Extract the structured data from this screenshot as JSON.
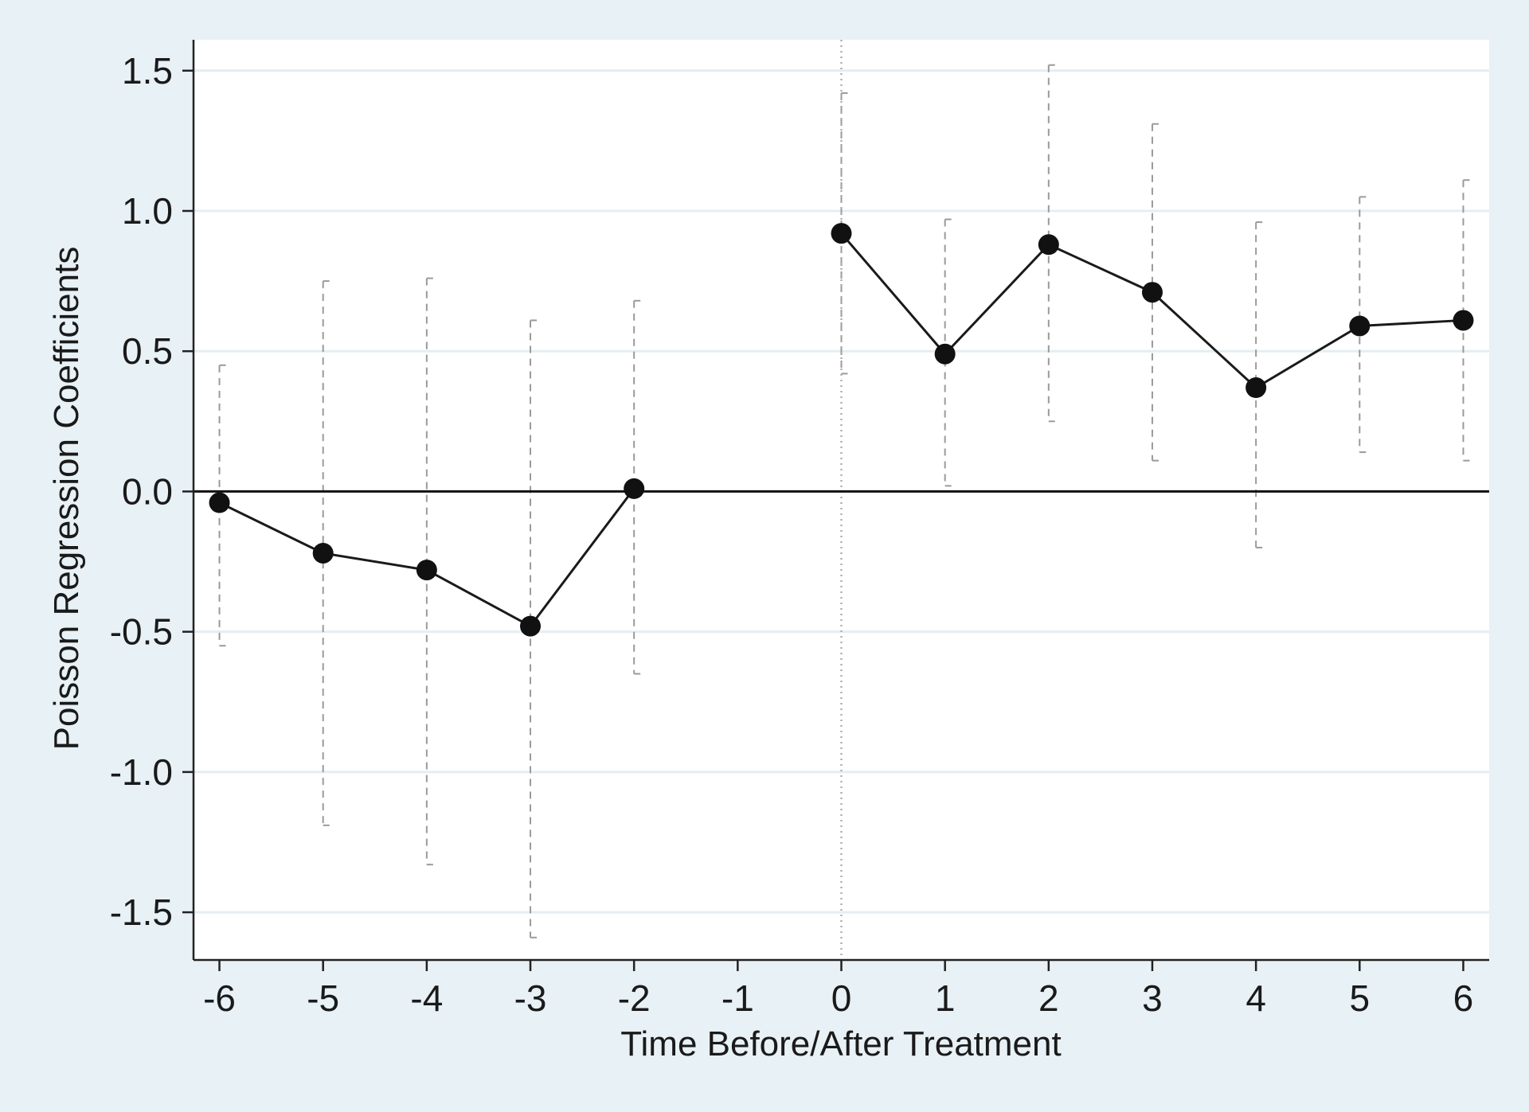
{
  "chart_data": {
    "type": "line",
    "xlabel": "Time Before/After Treatment",
    "ylabel": "Poisson Regression Coefficients",
    "x_ticks": [
      -6,
      -5,
      -4,
      -3,
      -2,
      -1,
      0,
      1,
      2,
      3,
      4,
      5,
      6
    ],
    "x_tick_labels": [
      "-6",
      "-5",
      "-4",
      "-3",
      "-2",
      "-1",
      "0",
      "1",
      "2",
      "3",
      "4",
      "5",
      "6"
    ],
    "y_ticks": [
      -1.5,
      -1.0,
      -0.5,
      0.0,
      0.5,
      1.0,
      1.5
    ],
    "y_tick_labels": [
      "-1.5",
      "-1.0",
      "-0.5",
      "0.0",
      "0.5",
      "1.0",
      "1.5"
    ],
    "xlim": [
      -6.25,
      6.25
    ],
    "ylim": [
      -1.67,
      1.61
    ],
    "grid": "horizontal",
    "reference_line_y": 0.0,
    "treatment_line_x": 0,
    "series": [
      {
        "segments": [
          [
            {
              "x": -6,
              "y": -0.04,
              "lo": -0.55,
              "hi": 0.45
            },
            {
              "x": -5,
              "y": -0.22,
              "lo": -1.19,
              "hi": 0.75
            },
            {
              "x": -4,
              "y": -0.28,
              "lo": -1.33,
              "hi": 0.76
            },
            {
              "x": -3,
              "y": -0.48,
              "lo": -1.59,
              "hi": 0.61
            },
            {
              "x": -2,
              "y": 0.01,
              "lo": -0.65,
              "hi": 0.68
            }
          ],
          [
            {
              "x": 0,
              "y": 0.92,
              "lo": 0.42,
              "hi": 1.42
            },
            {
              "x": 1,
              "y": 0.49,
              "lo": 0.02,
              "hi": 0.97
            },
            {
              "x": 2,
              "y": 0.88,
              "lo": 0.25,
              "hi": 1.52
            },
            {
              "x": 3,
              "y": 0.71,
              "lo": 0.11,
              "hi": 1.31
            },
            {
              "x": 4,
              "y": 0.37,
              "lo": -0.2,
              "hi": 0.96
            },
            {
              "x": 5,
              "y": 0.59,
              "lo": 0.14,
              "hi": 1.05
            },
            {
              "x": 6,
              "y": 0.61,
              "lo": 0.11,
              "hi": 1.11
            }
          ]
        ]
      }
    ],
    "colors": {
      "background": "#e8f1f5",
      "plot_area": "#ffffff",
      "grid": "#e4eef2",
      "line": "#1a1a1a",
      "marker": "#111111",
      "ci": "#9a9a9a"
    }
  }
}
